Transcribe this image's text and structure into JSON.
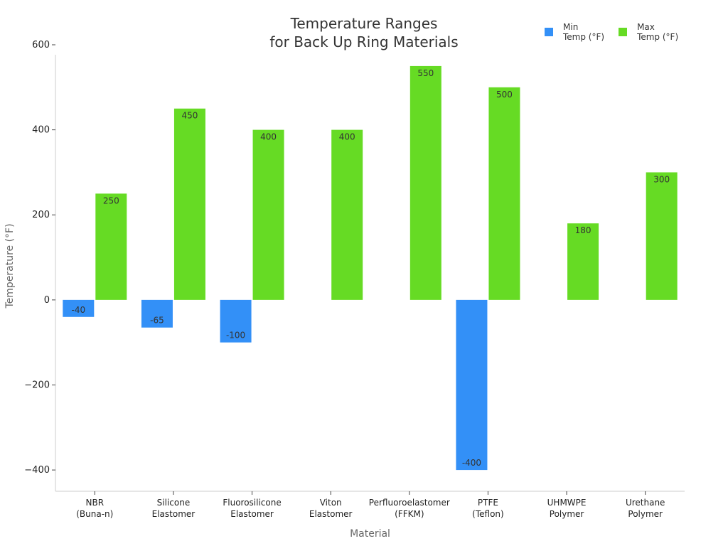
{
  "chart_data": {
    "type": "bar",
    "title_lines": [
      "Temperature Ranges",
      "for Back Up Ring Materials"
    ],
    "xlabel": "Material",
    "ylabel": "Temperature (°F)",
    "ylim": [
      -450,
      600
    ],
    "yticks": [
      600,
      400,
      200,
      0,
      -200,
      -400
    ],
    "ytick_labels": [
      "600",
      "400",
      "200",
      "0",
      "−200",
      "−400"
    ],
    "legend_position": "top-right",
    "grid": false,
    "categories": [
      [
        "NBR",
        "(Buna-n)"
      ],
      [
        "Silicone",
        "Elastomer"
      ],
      [
        "Fluorosilicone",
        "Elastomer"
      ],
      [
        "Viton",
        "Elastomer"
      ],
      [
        "Perfluoroelastomer",
        "(FFKM)"
      ],
      [
        "PTFE",
        "(Teflon)"
      ],
      [
        "UHMWPE",
        "Polymer"
      ],
      [
        "Urethane",
        "Polymer"
      ]
    ],
    "series": [
      {
        "name": "Min\nTemp (°F)",
        "color": "#3390f7",
        "values": [
          -40,
          -65,
          -100,
          null,
          null,
          -400,
          null,
          null
        ],
        "labels": [
          "-40",
          "-65",
          "-100",
          null,
          null,
          "-400",
          null,
          null
        ]
      },
      {
        "name": "Max\nTemp (°F)",
        "color": "#66db24",
        "values": [
          250,
          450,
          400,
          400,
          550,
          500,
          180,
          300
        ],
        "labels": [
          "250",
          "450",
          "400",
          "400",
          "550",
          "500",
          "180",
          "300"
        ]
      }
    ]
  }
}
